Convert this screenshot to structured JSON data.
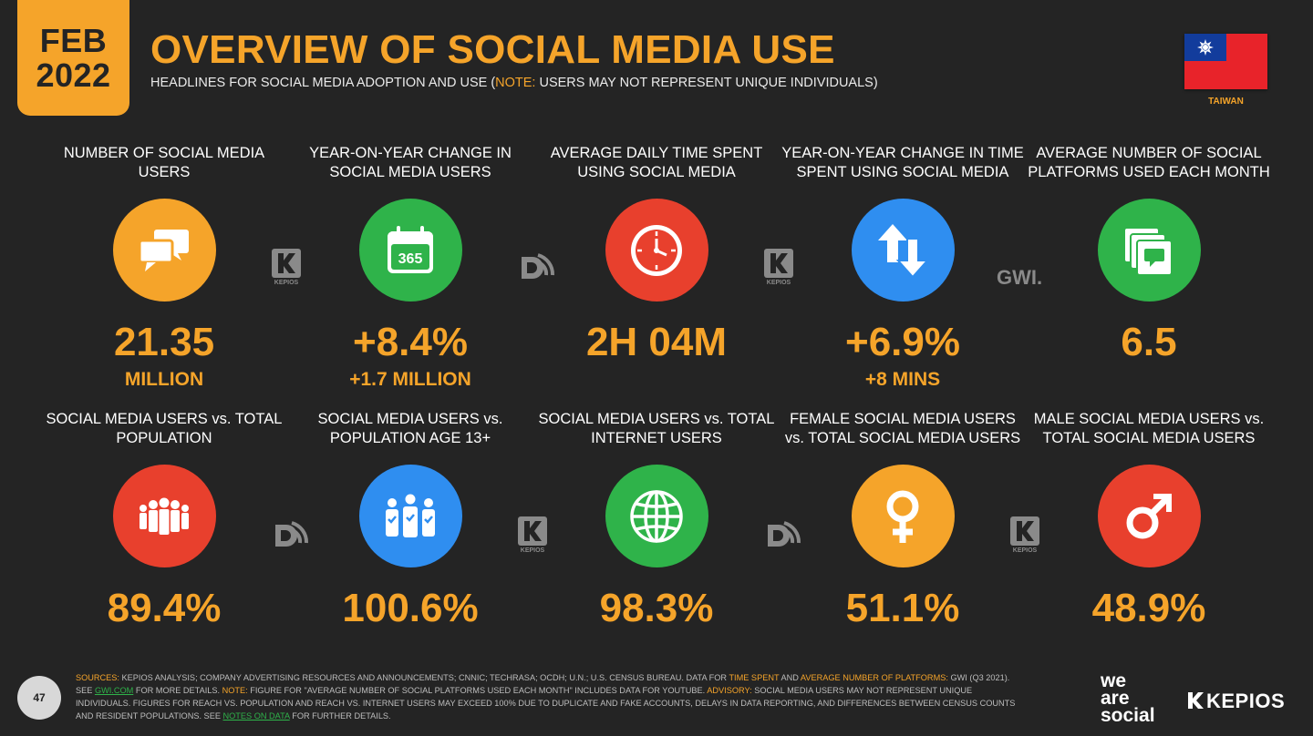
{
  "header": {
    "date_month": "FEB",
    "date_year": "2022",
    "title": "OVERVIEW OF SOCIAL MEDIA USE",
    "subtitle_pre": "HEADLINES FOR SOCIAL MEDIA ADOPTION AND USE (",
    "subtitle_note": "NOTE:",
    "subtitle_post": " USERS MAY NOT REPRESENT UNIQUE INDIVIDUALS)",
    "country": "TAIWAN"
  },
  "row1": [
    {
      "label": "NUMBER OF SOCIAL MEDIA USERS",
      "value": "21.35",
      "sub": "MILLION",
      "icon": "speech-bubbles-icon",
      "color": "#f5a42a"
    },
    {
      "label": "YEAR-ON-YEAR CHANGE IN SOCIAL MEDIA USERS",
      "value": "+8.4%",
      "sub": "+1.7 MILLION",
      "icon": "calendar-365-icon",
      "color": "#2fb34a"
    },
    {
      "label": "AVERAGE DAILY TIME SPENT USING SOCIAL MEDIA",
      "value": "2H 04M",
      "sub": "",
      "icon": "clock-icon",
      "color": "#e8402d"
    },
    {
      "label": "YEAR-ON-YEAR CHANGE IN TIME SPENT USING SOCIAL MEDIA",
      "value": "+6.9%",
      "sub": "+8 MINS",
      "icon": "up-down-arrows-icon",
      "color": "#2f8ef0"
    },
    {
      "label": "AVERAGE NUMBER OF SOCIAL PLATFORMS USED EACH MONTH",
      "value": "6.5",
      "sub": "",
      "icon": "stacked-cards-icon",
      "color": "#2fb34a"
    }
  ],
  "row2": [
    {
      "label": "SOCIAL MEDIA USERS vs. TOTAL POPULATION",
      "value": "89.4%",
      "icon": "people-group-icon",
      "color": "#e8402d"
    },
    {
      "label": "SOCIAL MEDIA USERS vs. POPULATION AGE 13+",
      "value": "100.6%",
      "icon": "checked-people-icon",
      "color": "#2f8ef0"
    },
    {
      "label": "SOCIAL MEDIA USERS vs. TOTAL INTERNET USERS",
      "value": "98.3%",
      "icon": "globe-icon",
      "color": "#2fb34a"
    },
    {
      "label": "FEMALE SOCIAL MEDIA USERS vs. TOTAL SOCIAL MEDIA USERS",
      "value": "51.1%",
      "icon": "female-symbol-icon",
      "color": "#f5a42a"
    },
    {
      "label": "MALE SOCIAL MEDIA USERS vs. TOTAL SOCIAL MEDIA USERS",
      "value": "48.9%",
      "icon": "male-symbol-icon",
      "color": "#e8402d"
    }
  ],
  "sources": {
    "kepios_small": "KEPIOS",
    "gwi": "GWI."
  },
  "footer": {
    "sources_label": "SOURCES:",
    "text1": " KEPIOS ANALYSIS; COMPANY ADVERTISING RESOURCES AND ANNOUNCEMENTS; CNNIC; TECHRASA; OCDH; U.N.; U.S. CENSUS BUREAU. DATA FOR ",
    "time_spent": "TIME SPENT",
    "and": " AND ",
    "avg_platforms": "AVERAGE NUMBER OF PLATFORMS:",
    "text2": " GWI (Q3 2021). SEE ",
    "gwi_link": "GWI.COM",
    "text3": " FOR MORE DETAILS. ",
    "note_label": "NOTE:",
    "text4": " FIGURE FOR \"AVERAGE NUMBER OF SOCIAL PLATFORMS USED EACH MONTH\" INCLUDES DATA FOR YOUTUBE. ",
    "advisory_label": "ADVISORY:",
    "text5": " SOCIAL MEDIA USERS MAY NOT REPRESENT UNIQUE INDIVIDUALS. FIGURES FOR REACH vs. POPULATION AND REACH vs. INTERNET USERS MAY EXCEED 100% DUE TO DUPLICATE AND FAKE ACCOUNTS, DELAYS IN DATA REPORTING, AND DIFFERENCES BETWEEN CENSUS COUNTS AND RESIDENT POPULATIONS. SEE ",
    "notes_link": "NOTES ON DATA",
    "text6": " FOR FURTHER DETAILS.",
    "page_number": "47",
    "brand_line1": "we",
    "brand_line2": "are",
    "brand_line3": "social",
    "kepios_brand": "KEPIOS"
  }
}
